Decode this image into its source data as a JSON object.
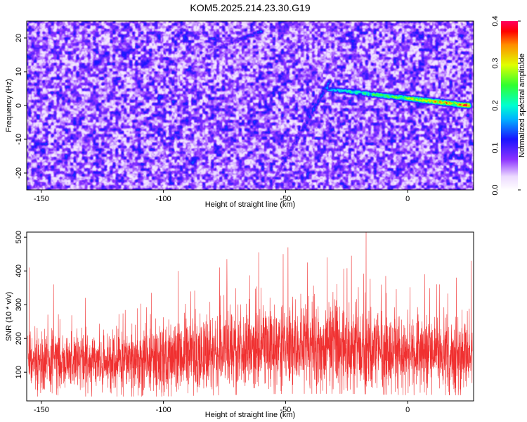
{
  "title": "KOM5.2025.214.23.30.G19",
  "chart_data": [
    {
      "type": "heatmap",
      "xlabel": "Height of straight line (km)",
      "ylabel": "Frequency (Hz)",
      "xlim": [
        -156,
        27
      ],
      "ylim": [
        -25,
        25
      ],
      "xticks": [
        -150,
        -100,
        -50,
        0
      ],
      "yticks": [
        -20,
        -10,
        0,
        10,
        20
      ],
      "colorbar": {
        "label": "Normalized spectral amplitude",
        "range": [
          0.0,
          0.4
        ],
        "ticks": [
          "0.0",
          "0.1",
          "0.2",
          "0.3",
          "0.4"
        ]
      },
      "background_level": 0.06,
      "ridges": [
        {
          "from": [
            -57,
            -25
          ],
          "to": [
            -32,
            7
          ],
          "peak_amplitude": 0.16
        },
        {
          "from": [
            -34,
            5
          ],
          "to": [
            25,
            0
          ],
          "peak_amplitude": 0.4
        },
        {
          "from": [
            -82,
            16
          ],
          "to": [
            -60,
            22
          ],
          "peak_amplitude": 0.15
        }
      ],
      "peak": {
        "x": 23,
        "y": 0,
        "amplitude": 0.4
      }
    },
    {
      "type": "line",
      "xlabel": "Height of straight line (km)",
      "ylabel": "SNR (10 * v/v)",
      "xlim": [
        -156,
        27
      ],
      "ylim": [
        15,
        515
      ],
      "xticks": [
        -150,
        -100,
        -50,
        0
      ],
      "yticks": [
        100,
        200,
        300,
        400,
        500
      ],
      "series_color": "#f03030",
      "x_step_km": 0.06,
      "envelope": [
        {
          "x": -155,
          "low": 35,
          "mean": 140,
          "high": 300
        },
        {
          "x": -130,
          "low": 35,
          "mean": 130,
          "high": 280
        },
        {
          "x": -100,
          "low": 35,
          "mean": 135,
          "high": 320
        },
        {
          "x": -75,
          "low": 40,
          "mean": 160,
          "high": 380
        },
        {
          "x": -50,
          "low": 45,
          "mean": 175,
          "high": 410
        },
        {
          "x": -25,
          "low": 45,
          "mean": 170,
          "high": 420
        },
        {
          "x": 0,
          "low": 40,
          "mean": 150,
          "high": 360
        },
        {
          "x": 25,
          "low": 40,
          "mean": 150,
          "high": 380
        }
      ],
      "spikes": [
        {
          "x": -155,
          "y": 410
        },
        {
          "x": -145,
          "y": 360
        },
        {
          "x": -132,
          "y": 320
        },
        {
          "x": -105,
          "y": 335
        },
        {
          "x": -94,
          "y": 400
        },
        {
          "x": -77,
          "y": 410
        },
        {
          "x": -74,
          "y": 435
        },
        {
          "x": -61,
          "y": 455
        },
        {
          "x": -51,
          "y": 450
        },
        {
          "x": -49,
          "y": 470
        },
        {
          "x": -41,
          "y": 425
        },
        {
          "x": -33,
          "y": 440
        },
        {
          "x": -23,
          "y": 445
        },
        {
          "x": -17,
          "y": 515
        },
        {
          "x": -9,
          "y": 385
        },
        {
          "x": 7,
          "y": 390
        },
        {
          "x": 13,
          "y": 360
        },
        {
          "x": 20,
          "y": 380
        },
        {
          "x": 26,
          "y": 430
        }
      ]
    }
  ]
}
